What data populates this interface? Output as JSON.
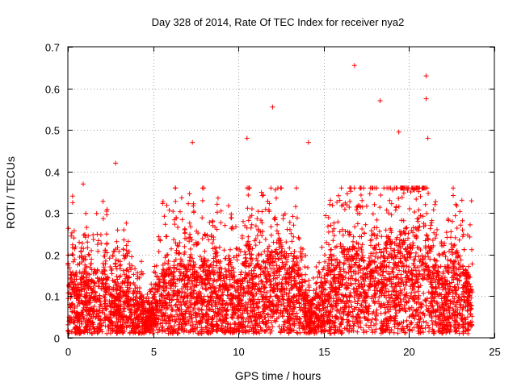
{
  "chart_data": {
    "type": "scatter",
    "title": "Day 328 of 2014, Rate Of TEC Index for receiver nya2",
    "xlabel": "GPS time / hours",
    "ylabel": "ROTI / TECUs",
    "xlim": [
      0,
      25
    ],
    "ylim": [
      0,
      0.7
    ],
    "x_ticks": [
      0,
      5,
      10,
      15,
      20,
      25
    ],
    "x_tick_labels": [
      "0",
      "5",
      "10",
      "15",
      "20",
      "25"
    ],
    "y_ticks": [
      0,
      0.1,
      0.2,
      0.3,
      0.4,
      0.5,
      0.6,
      0.7
    ],
    "y_tick_labels": [
      "0",
      "0.1",
      "0.2",
      "0.3",
      "0.4",
      "0.5",
      "0.6",
      "0.7"
    ],
    "grid": true,
    "marker": "+",
    "marker_color": "#ff0000",
    "series": [
      {
        "name": "ROTI",
        "points_note": "representative sample of the dense point cloud",
        "x": [
          0.1,
          0.3,
          0.5,
          0.8,
          1.0,
          1.3,
          1.6,
          1.9,
          2.2,
          2.5,
          2.8,
          3.1,
          3.4,
          3.7,
          4.0,
          4.3,
          4.6,
          4.9,
          5.2,
          5.5,
          5.8,
          6.1,
          6.4,
          6.7,
          7.0,
          7.3,
          7.6,
          7.9,
          8.2,
          8.5,
          8.8,
          9.1,
          9.4,
          9.7,
          10.0,
          10.3,
          10.6,
          10.9,
          11.2,
          11.5,
          11.8,
          12.1,
          12.4,
          12.7,
          13.0,
          13.3,
          13.6,
          13.9,
          14.2,
          14.5,
          14.8,
          15.1,
          15.4,
          15.7,
          16.0,
          16.3,
          16.6,
          16.9,
          17.2,
          17.5,
          17.8,
          18.1,
          18.4,
          18.7,
          19.0,
          19.3,
          19.6,
          19.9,
          20.2,
          20.5,
          20.8,
          21.1,
          21.4,
          21.7,
          22.0,
          22.3,
          22.6,
          22.9,
          23.2,
          23.5,
          23.7
        ],
        "y": [
          0.08,
          0.12,
          0.06,
          0.09,
          0.1,
          0.07,
          0.11,
          0.08,
          0.13,
          0.06,
          0.09,
          0.07,
          0.1,
          0.08,
          0.05,
          0.06,
          0.04,
          0.05,
          0.07,
          0.1,
          0.12,
          0.09,
          0.14,
          0.11,
          0.1,
          0.13,
          0.09,
          0.12,
          0.1,
          0.11,
          0.14,
          0.09,
          0.12,
          0.1,
          0.08,
          0.12,
          0.15,
          0.1,
          0.13,
          0.11,
          0.14,
          0.12,
          0.16,
          0.11,
          0.09,
          0.13,
          0.1,
          0.07,
          0.05,
          0.06,
          0.08,
          0.1,
          0.13,
          0.11,
          0.15,
          0.12,
          0.16,
          0.14,
          0.13,
          0.1,
          0.15,
          0.17,
          0.12,
          0.14,
          0.16,
          0.13,
          0.18,
          0.15,
          0.14,
          0.17,
          0.19,
          0.15,
          0.12,
          0.1,
          0.08,
          0.11,
          0.14,
          0.12,
          0.1,
          0.09,
          0.11
        ]
      }
    ],
    "notable_peaks": [
      {
        "x": 0.9,
        "y": 0.37
      },
      {
        "x": 2.8,
        "y": 0.42
      },
      {
        "x": 7.3,
        "y": 0.47
      },
      {
        "x": 10.5,
        "y": 0.48
      },
      {
        "x": 12.0,
        "y": 0.555
      },
      {
        "x": 14.1,
        "y": 0.47
      },
      {
        "x": 16.8,
        "y": 0.655
      },
      {
        "x": 18.3,
        "y": 0.57
      },
      {
        "x": 19.4,
        "y": 0.495
      },
      {
        "x": 21.0,
        "y": 0.63
      },
      {
        "x": 21.0,
        "y": 0.575
      },
      {
        "x": 21.1,
        "y": 0.48
      }
    ]
  }
}
